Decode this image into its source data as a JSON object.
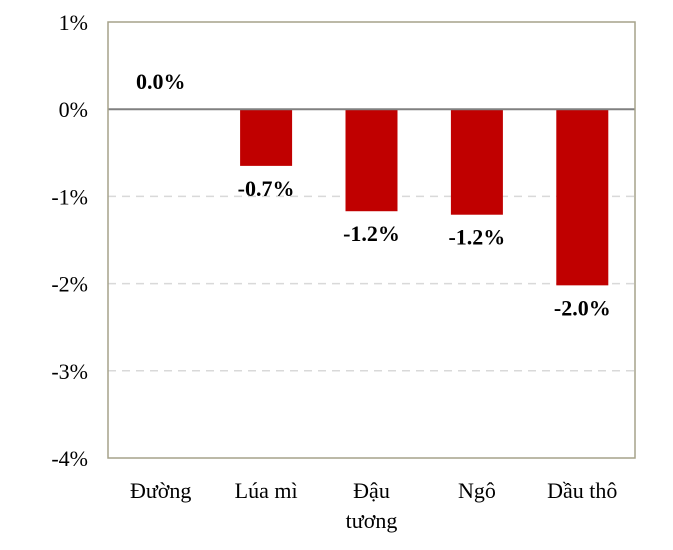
{
  "chart_data": {
    "type": "bar",
    "categories": [
      [
        "Đường"
      ],
      [
        "Lúa mì"
      ],
      [
        "Đậu",
        "tương"
      ],
      [
        "Ngô"
      ],
      [
        "Dầu thô"
      ]
    ],
    "values": [
      0.0,
      -0.65,
      -1.17,
      -1.21,
      -2.02
    ],
    "data_labels": [
      "0.0%",
      "-0.7%",
      "-1.2%",
      "-1.2%",
      "-2.0%"
    ],
    "ylim": [
      -4,
      1
    ],
    "yticks": [
      1,
      0,
      -1,
      -2,
      -3,
      -4
    ],
    "ytick_labels": [
      "1%",
      "0%",
      "-1%",
      "-2%",
      "-3%",
      "-4%"
    ],
    "grid": true,
    "legend": "none",
    "bar_color": "#C00000",
    "zero_line_color": "#808080",
    "grid_color": "#D9D9D9",
    "frame_color": "#A6A28A"
  }
}
